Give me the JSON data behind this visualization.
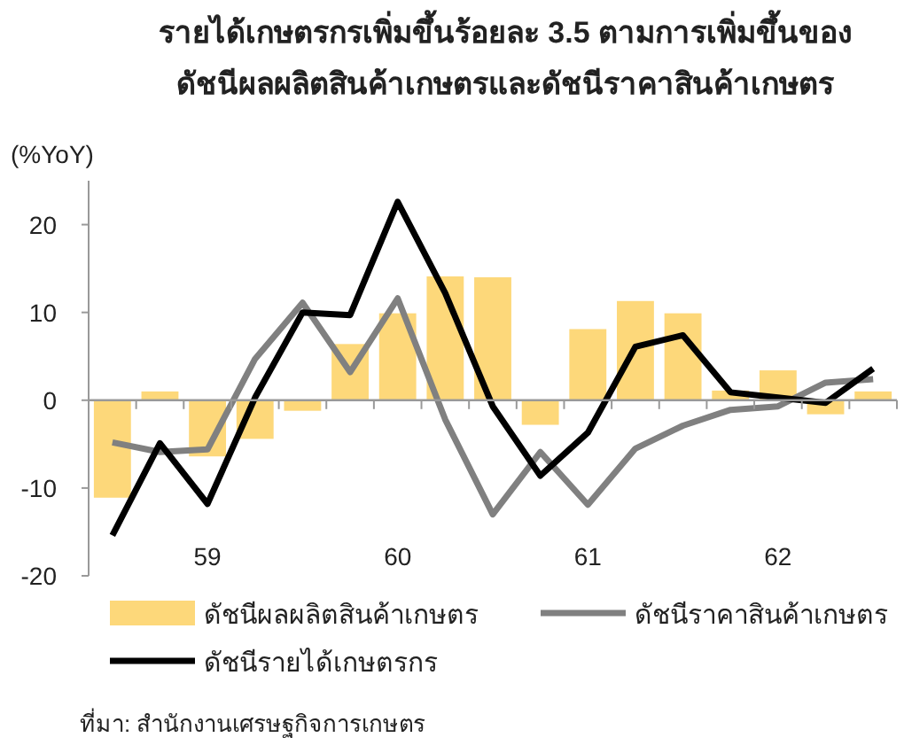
{
  "chart_data": {
    "type": "bar",
    "title": "รายได้เกษตรกรเพิ่มขึ้นร้อยละ 3.5 ตามการเพิ่มขึ้นของ\nดัชนีผลผลิตสินค้าเกษตรและดัชนีราคาสินค้าเกษตร",
    "ylabel": "(%YoY)",
    "categories": [
      null,
      null,
      "59",
      null,
      null,
      null,
      "60",
      null,
      null,
      null,
      "61",
      null,
      null,
      null,
      "62",
      null,
      null
    ],
    "series": [
      {
        "name": "ดัชนีผลผลิตสินค้าเกษตร",
        "color": "#fdd87a",
        "values": [
          -11.1,
          1.0,
          -6.4,
          -4.4,
          -1.2,
          6.4,
          9.9,
          14.1,
          14.0,
          -2.8,
          8.1,
          11.3,
          9.9,
          1.1,
          3.4,
          -1.6,
          1.0
        ]
      },
      {
        "name": "ดัชนีราคาสินค้าเกษตร",
        "type": "line",
        "color": "#808080",
        "values": [
          -4.8,
          -5.9,
          -5.6,
          4.7,
          11.1,
          3.2,
          11.6,
          -2.2,
          -13.0,
          -5.9,
          -11.9,
          -5.5,
          -2.9,
          -1.1,
          -0.7,
          2.0,
          2.4
        ]
      },
      {
        "name": "ดัชนีรายได้เกษตรกร",
        "type": "line",
        "color": "#000000",
        "values": [
          -15.4,
          -4.9,
          -11.8,
          0.3,
          10.0,
          9.7,
          22.6,
          12.2,
          -0.7,
          -8.6,
          -3.7,
          6.1,
          7.4,
          0.9,
          0.3,
          -0.3,
          3.6
        ]
      }
    ],
    "ylim": [
      -20,
      25
    ],
    "yticks": [
      -20,
      -10,
      0,
      10,
      20
    ],
    "legend": "bottom",
    "line_style": "solid",
    "annotations": [
      "ที่มา: สำนักงานเศรษฐกิจการเกษตร"
    ]
  }
}
